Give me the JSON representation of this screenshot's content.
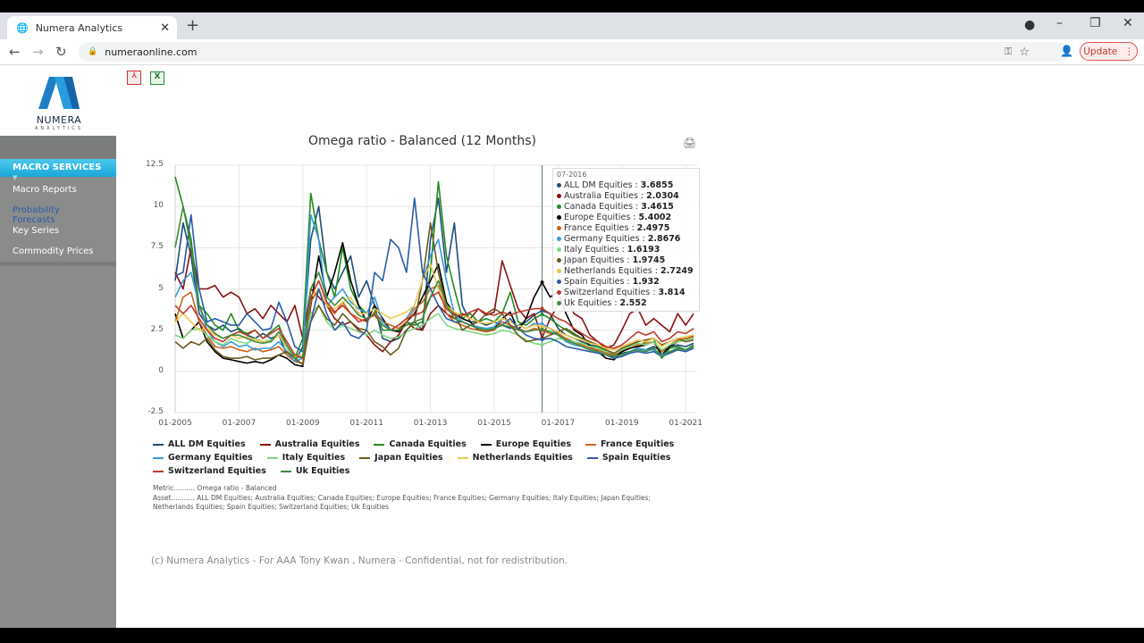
{
  "browser": {
    "tab_title": "Numera Analytics",
    "url": "numeraonline.com",
    "update_label": "Update"
  },
  "logo": {
    "name": "NUMERA",
    "sub": "ANALYTICS"
  },
  "toolbar": {
    "pdf": "pdf-export",
    "excel": "excel-export"
  },
  "sidebar": {
    "active": "MACRO SERVICES",
    "items": [
      {
        "label": "Macro Reports",
        "link": false
      },
      {
        "label": "Probability Forecasts",
        "link": true
      },
      {
        "label": "Key Series",
        "link": false
      },
      {
        "label": "Commodity Prices",
        "link": false
      }
    ]
  },
  "tooltip": {
    "date": "07-2016",
    "rows": [
      {
        "name": "ALL DM Equities",
        "value": "3.6855"
      },
      {
        "name": "Australia Equities",
        "value": "2.0304"
      },
      {
        "name": "Canada Equities",
        "value": "3.4615"
      },
      {
        "name": "Europe Equities",
        "value": "5.4002"
      },
      {
        "name": "France Equities",
        "value": "2.4975"
      },
      {
        "name": "Germany Equities",
        "value": "2.8676"
      },
      {
        "name": "Italy Equities",
        "value": "1.6193"
      },
      {
        "name": "Japan Equities",
        "value": "1.9745"
      },
      {
        "name": "Netherlands Equities",
        "value": "2.7249"
      },
      {
        "name": "Spain Equities",
        "value": "1.932"
      },
      {
        "name": "Switzerland Equities",
        "value": "3.814"
      },
      {
        "name": "Uk Equities",
        "value": "2.552"
      }
    ]
  },
  "meta": {
    "metric": "Metric.......... Omega ratio - Balanced",
    "asset": "Asset........... ALL DM Equities; Australia Equities; Canada Equities; Europe Equities; France Equities; Germany Equities; Italy Equities; Japan Equities; Netherlands Equities; Spain Equities; Switzerland Equities; Uk Equities"
  },
  "footer": "(c) Numera Analytics - For AAA Tony Kwan , Numera - Confidential, not for redistribution.",
  "chart_data": {
    "type": "line",
    "title": "Omega ratio - Balanced (12 Months)",
    "xlabel": "",
    "ylabel": "",
    "ylim": [
      -2.5,
      12.5
    ],
    "yticks": [
      "12.5",
      "10",
      "7.5",
      "5",
      "2.5",
      "0",
      "-2.5"
    ],
    "xticks": [
      "01-2005",
      "01-2007",
      "01-2009",
      "01-2011",
      "01-2013",
      "01-2015",
      "01-2017",
      "01-2019",
      "01-2021"
    ],
    "grid": true,
    "legend": "bottom",
    "crosshair": "07-2016",
    "x": [
      "01-2005",
      "04-2005",
      "07-2005",
      "10-2005",
      "01-2006",
      "04-2006",
      "07-2006",
      "10-2006",
      "01-2007",
      "04-2007",
      "07-2007",
      "10-2007",
      "01-2008",
      "04-2008",
      "07-2008",
      "10-2008",
      "01-2009",
      "04-2009",
      "07-2009",
      "10-2009",
      "01-2010",
      "04-2010",
      "07-2010",
      "10-2010",
      "01-2011",
      "04-2011",
      "07-2011",
      "10-2011",
      "01-2012",
      "04-2012",
      "07-2012",
      "10-2012",
      "01-2013",
      "04-2013",
      "07-2013",
      "10-2013",
      "01-2014",
      "04-2014",
      "07-2014",
      "10-2014",
      "01-2015",
      "04-2015",
      "07-2015",
      "10-2015",
      "01-2016",
      "04-2016",
      "07-2016",
      "10-2016",
      "01-2017",
      "04-2017",
      "07-2017",
      "10-2017",
      "01-2018",
      "04-2018",
      "07-2018",
      "10-2018",
      "01-2019",
      "04-2019",
      "07-2019",
      "10-2019",
      "01-2020",
      "04-2020",
      "07-2020",
      "10-2020",
      "01-2021",
      "04-2021"
    ],
    "series": [
      {
        "name": "ALL DM Equities",
        "color": "#1f4e79",
        "values": [
          5.5,
          9,
          7,
          3.5,
          2.8,
          2.5,
          2.8,
          2.4,
          2.6,
          2.2,
          2.0,
          2.3,
          2.0,
          2.2,
          1.0,
          0.6,
          1.5,
          8,
          10,
          6,
          5,
          6,
          7,
          4.5,
          5.5,
          4,
          2,
          1.8,
          2,
          2.5,
          3,
          2.5,
          8,
          10.5,
          6,
          9,
          4,
          3,
          3,
          2.8,
          3,
          2.8,
          2.6,
          2.8,
          3,
          3.4,
          3.69,
          3.5,
          2.6,
          2.2,
          2.0,
          1.8,
          1.6,
          1.5,
          1.2,
          1.0,
          1.1,
          1.2,
          1.4,
          1.3,
          1.5,
          1.2,
          1.5,
          1.6,
          1.5,
          1.7
        ]
      },
      {
        "name": "Australia Equities",
        "color": "#8b1010",
        "values": [
          6,
          5,
          7.5,
          5,
          5,
          5.2,
          4.5,
          4.8,
          4.5,
          3.5,
          3.8,
          3.2,
          4,
          3.5,
          3,
          4,
          2,
          5,
          4.5,
          4,
          3.2,
          2.8,
          3,
          2.5,
          2.2,
          1.6,
          1.2,
          1.8,
          2.2,
          3,
          2.6,
          2.5,
          3.5,
          4,
          3.5,
          3.2,
          3.5,
          3.2,
          3.8,
          3.4,
          3.6,
          6.7,
          5.2,
          3.8,
          3.2,
          3.5,
          2.03,
          3.2,
          4,
          4.5,
          3.5,
          3.2,
          2.2,
          1.8,
          1.4,
          1.6,
          2.5,
          3.5,
          3.8,
          2.8,
          3.2,
          2.8,
          2.4,
          3.5,
          2.8,
          3.5
        ]
      },
      {
        "name": "Canada Equities",
        "color": "#228b22",
        "values": [
          11.8,
          10,
          8,
          4,
          3.5,
          2.8,
          2.5,
          3.5,
          2.5,
          2.3,
          2.5,
          2,
          2.4,
          2.8,
          1.5,
          0.8,
          2,
          10.8,
          8,
          6,
          4.5,
          7.5,
          5,
          4,
          3.5,
          3.8,
          2.5,
          2.5,
          2.5,
          3,
          2.8,
          3,
          6,
          11.5,
          7,
          5,
          3.2,
          3.5,
          3,
          3.2,
          3,
          3.5,
          4.8,
          3,
          2.8,
          3.2,
          3.46,
          3.2,
          2.8,
          2.5,
          2.2,
          2.0,
          1.8,
          1.5,
          1.2,
          0.9,
          1.2,
          1.6,
          1.5,
          1.8,
          2,
          0.8,
          1.4,
          1.5,
          1.3,
          1.6
        ]
      },
      {
        "name": "Europe Equities",
        "color": "#000000",
        "values": [
          3.5,
          2,
          2.5,
          3,
          1.8,
          1.2,
          0.8,
          0.7,
          0.6,
          0.5,
          0.6,
          0.5,
          0.7,
          1,
          0.8,
          0.4,
          0.3,
          4,
          7,
          4.5,
          6,
          7.8,
          5.5,
          4,
          3,
          4,
          3.2,
          2.5,
          2.4,
          3,
          3.5,
          4.5,
          5.5,
          6.5,
          4.2,
          3.5,
          3.2,
          3,
          2.5,
          2.4,
          2.6,
          3.2,
          3.6,
          2.5,
          3.2,
          4.5,
          5.4,
          4.5,
          4.8,
          3.5,
          2.5,
          2.2,
          1.5,
          1.2,
          0.8,
          0.7,
          1.2,
          1.4,
          1.5,
          1.6,
          1.8,
          1.0,
          1.5,
          1.8,
          1.9,
          2.2
        ]
      },
      {
        "name": "France Equities",
        "color": "#c8641e",
        "values": [
          3,
          4.5,
          4.8,
          3,
          2.2,
          1.5,
          1.4,
          1.5,
          1.3,
          1.2,
          1.4,
          1.2,
          1.3,
          1.5,
          1.0,
          0.6,
          0.5,
          4.2,
          5,
          4,
          3.5,
          4.2,
          3.5,
          3.2,
          3,
          3.6,
          3,
          2.8,
          2.6,
          3,
          3.8,
          4.2,
          5,
          5.2,
          3.5,
          3,
          2.8,
          2.6,
          2.5,
          2.4,
          2.5,
          3,
          2.8,
          2.6,
          2.4,
          2.6,
          2.5,
          2.3,
          2.3,
          2.0,
          1.8,
          1.6,
          1.4,
          1.3,
          1.1,
          1.0,
          1.3,
          1.5,
          1.6,
          1.7,
          1.8,
          1.2,
          1.6,
          1.9,
          2.0,
          2.1
        ]
      },
      {
        "name": "Germany Equities",
        "color": "#3a9ad9",
        "values": [
          4.5,
          5.5,
          6,
          4,
          2.5,
          1.8,
          1.5,
          1.8,
          1.5,
          1.6,
          1.3,
          1.4,
          1.4,
          1.8,
          1.2,
          0.6,
          0.8,
          9.5,
          8,
          4,
          4.5,
          5,
          4.2,
          3.8,
          3.5,
          4.5,
          3,
          2.5,
          2.8,
          3.2,
          4,
          5.5,
          7,
          8,
          5.5,
          3.5,
          3,
          2.8,
          2.7,
          2.6,
          2.7,
          3.2,
          3.0,
          2.8,
          2.6,
          2.9,
          2.87,
          2.6,
          2.2,
          1.8,
          1.6,
          1.5,
          1.3,
          1.2,
          1.0,
          0.9,
          1.0,
          1.2,
          1.4,
          1.3,
          1.3,
          1.0,
          1.2,
          1.4,
          1.3,
          1.5
        ]
      },
      {
        "name": "Italy Equities",
        "color": "#7ed87e",
        "values": [
          2.2,
          2,
          2.5,
          2.6,
          2.2,
          1.8,
          1.6,
          2,
          1.8,
          1.7,
          2.0,
          1.8,
          1.9,
          2.2,
          1.4,
          0.8,
          1,
          3.5,
          4,
          3,
          2.5,
          2.8,
          2.6,
          2.4,
          2.2,
          2.5,
          2.2,
          2.0,
          2.1,
          2.4,
          2.6,
          2.8,
          3.2,
          3.5,
          2.8,
          2.6,
          2.5,
          2.4,
          2.3,
          2.2,
          2.3,
          2.5,
          2.4,
          2.2,
          1.9,
          1.7,
          1.62,
          1.8,
          2,
          1.9,
          1.8,
          1.7,
          1.5,
          1.4,
          1.2,
          1.1,
          1.3,
          1.5,
          1.7,
          1.6,
          1.8,
          1.3,
          1.6,
          1.8,
          1.9,
          2.0
        ]
      },
      {
        "name": "Japan Equities",
        "color": "#6b5a1e",
        "values": [
          1.8,
          1.4,
          1.8,
          1.6,
          2.0,
          1.3,
          0.9,
          0.8,
          0.8,
          0.9,
          0.7,
          0.8,
          0.8,
          1.0,
          1.2,
          0.8,
          0.4,
          3,
          4,
          3.2,
          2.8,
          3.5,
          3,
          2.6,
          2.5,
          1.8,
          1.5,
          1.0,
          1.4,
          2.5,
          3,
          5.5,
          9,
          6,
          4,
          3.5,
          2.5,
          2.8,
          3,
          3.5,
          3.8,
          3.5,
          2.8,
          2.2,
          1.8,
          1.9,
          1.97,
          2.2,
          2.4,
          2.6,
          2.3,
          2.0,
          1.8,
          1.6,
          1.3,
          1.1,
          1.4,
          1.6,
          1.8,
          1.9,
          2.0,
          1.6,
          1.8,
          2.0,
          1.8,
          1.9
        ]
      },
      {
        "name": "Netherlands Equities",
        "color": "#f0c850",
        "values": [
          3,
          3.5,
          3,
          2.5,
          2.6,
          2.2,
          2,
          2.2,
          2,
          2.1,
          1.9,
          1.8,
          1.8,
          2.2,
          1.5,
          0.9,
          1,
          4.5,
          5,
          4,
          3.8,
          4.2,
          4.5,
          3.5,
          3.5,
          3.8,
          3.5,
          3.2,
          3.4,
          3.6,
          4,
          5.5,
          6.5,
          5,
          4,
          3.6,
          3.4,
          3.2,
          3.0,
          2.9,
          3,
          3.2,
          3,
          2.8,
          2.6,
          2.8,
          2.72,
          2.6,
          2.4,
          2.2,
          2,
          1.9,
          1.7,
          1.6,
          1.4,
          1.3,
          1.5,
          1.7,
          1.9,
          1.8,
          2.0,
          1.5,
          1.8,
          2.0,
          2.1,
          2.2
        ]
      },
      {
        "name": "Spain Equities",
        "color": "#2a5caa",
        "values": [
          5.8,
          6,
          9.5,
          5,
          3,
          3.2,
          3,
          2.8,
          2.8,
          3.5,
          3,
          2.5,
          2.6,
          4.2,
          3,
          1.5,
          1.2,
          3,
          5,
          3.5,
          2.5,
          3,
          2.2,
          2.0,
          2.5,
          6,
          5.5,
          8,
          7.5,
          6,
          10.5,
          6,
          5,
          4,
          3.2,
          3,
          3,
          2.8,
          2.6,
          2.5,
          2.6,
          2.8,
          3.2,
          2.6,
          2.2,
          2.0,
          1.93,
          2.0,
          1.8,
          1.5,
          1.4,
          1.3,
          1.2,
          1.1,
          1.0,
          0.8,
          0.9,
          1.1,
          1.2,
          1.1,
          1.2,
          0.9,
          1.1,
          1.3,
          1.2,
          1.4
        ]
      },
      {
        "name": "Switzerland Equities",
        "color": "#c0392b",
        "values": [
          4,
          3.5,
          4,
          3.2,
          2.5,
          2.0,
          1.8,
          2.2,
          2.4,
          2.2,
          2.5,
          2.0,
          2.3,
          2.6,
          1.8,
          1.0,
          0.8,
          4.5,
          5.5,
          4.2,
          3.6,
          4,
          3.5,
          3,
          3.2,
          3.4,
          2.8,
          2.5,
          2.8,
          3.2,
          3.4,
          3.6,
          4.5,
          4.8,
          3.8,
          3.4,
          3.4,
          3.6,
          3.8,
          3.5,
          3.4,
          3.6,
          3.4,
          3.6,
          3.7,
          3.8,
          3.81,
          3.5,
          3.2,
          3.0,
          2.6,
          2.3,
          2.0,
          1.8,
          1.5,
          1.4,
          1.6,
          2.0,
          2.4,
          2.2,
          2.4,
          1.8,
          2.0,
          2.4,
          2.3,
          2.6
        ]
      },
      {
        "name": "Uk Equities",
        "color": "#3c8c3c",
        "values": [
          7.5,
          10,
          7.5,
          4,
          2.8,
          2.3,
          2.0,
          2.2,
          2.2,
          2.0,
          1.8,
          1.7,
          1.8,
          2.4,
          1.6,
          0.8,
          0.9,
          5,
          6,
          4.5,
          4,
          4.5,
          4,
          3.4,
          3.2,
          3.5,
          2.8,
          2.5,
          2.5,
          2.8,
          3,
          3.2,
          4.5,
          5.5,
          4,
          3.2,
          3,
          2.8,
          2.6,
          2.5,
          2.6,
          2.8,
          2.7,
          2.5,
          2.4,
          2.5,
          2.55,
          2.4,
          2.2,
          1.9,
          1.7,
          1.5,
          1.3,
          1.2,
          1.0,
          0.9,
          1.0,
          1.2,
          1.3,
          1.2,
          1.4,
          0.9,
          1.2,
          1.4,
          1.3,
          1.5
        ]
      }
    ]
  }
}
